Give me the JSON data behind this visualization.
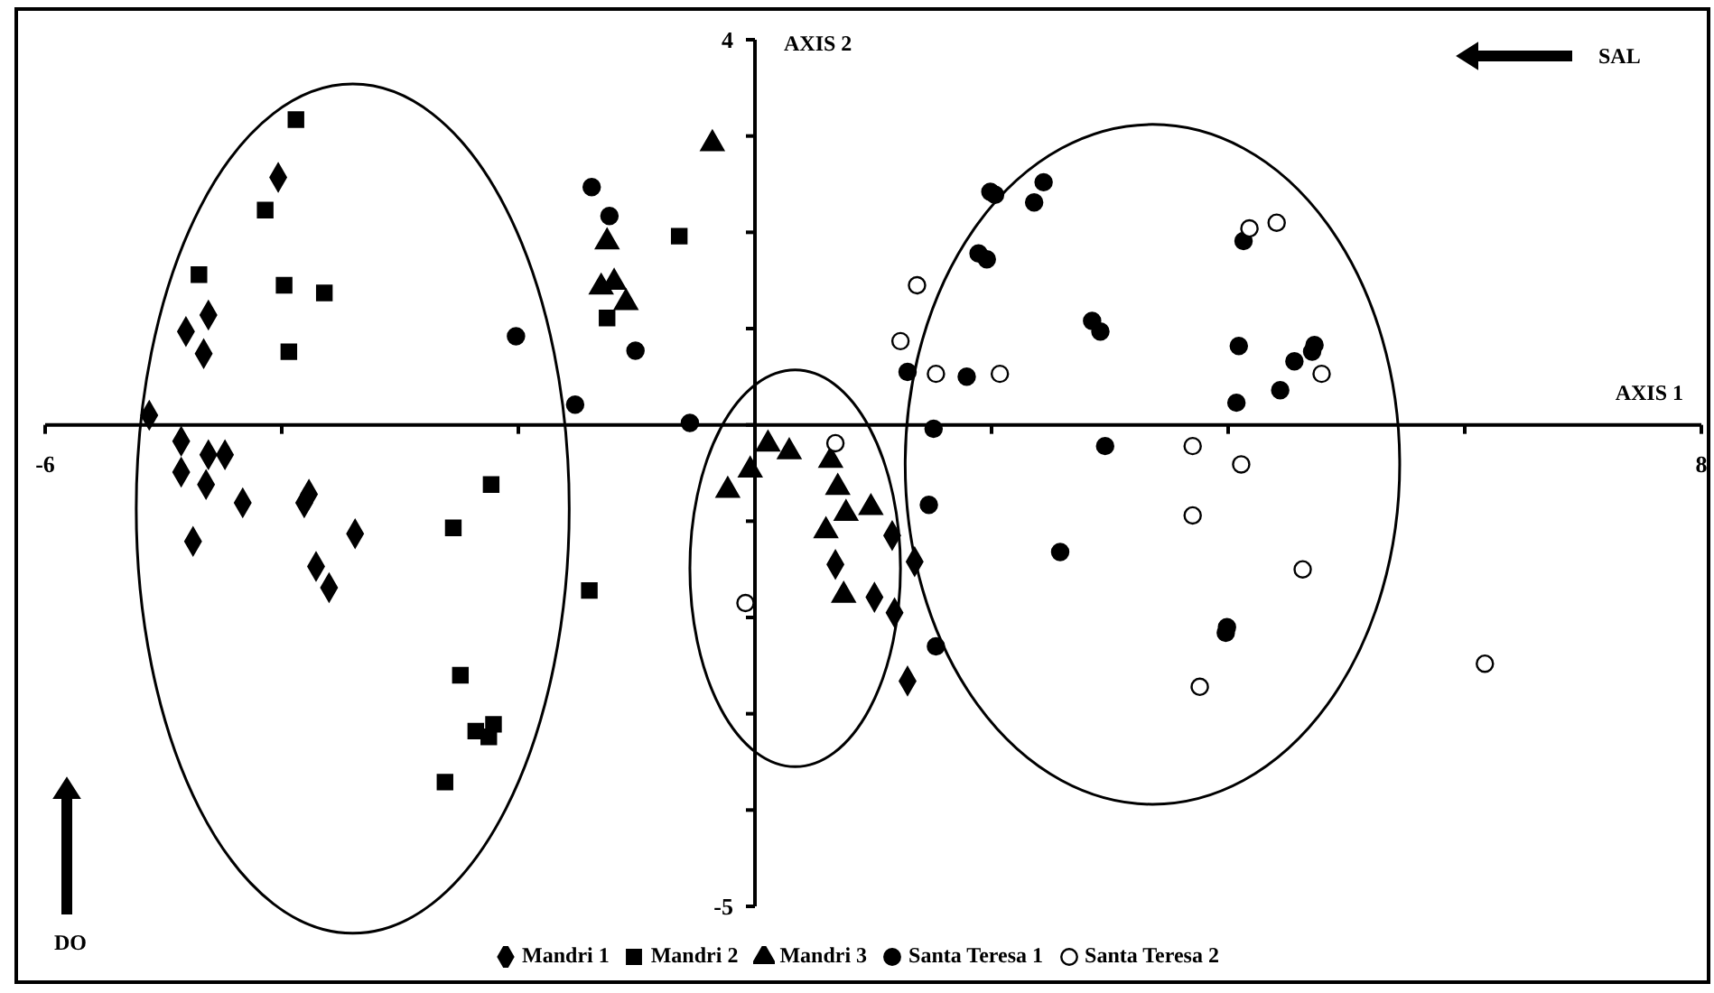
{
  "chart_data": {
    "type": "scatter",
    "xlabel": "AXIS 1",
    "ylabel": "AXIS 2",
    "annotations": [
      "SAL",
      "DO"
    ],
    "xlim": [
      -6,
      8
    ],
    "xticks": [
      -6,
      {
        "value": -4,
        "label": null
      },
      {
        "value": -2,
        "label": null
      },
      {
        "value": 0,
        "label": null
      },
      {
        "value": 2,
        "label": null
      },
      {
        "value": 4,
        "label": null
      },
      {
        "value": 6,
        "label": null
      },
      8
    ],
    "ylim": [
      -5,
      4
    ],
    "yticks": [
      -5,
      {
        "value": -4,
        "label": null
      },
      {
        "value": -3,
        "label": null
      },
      {
        "value": -2,
        "label": null
      },
      {
        "value": -1,
        "label": null
      },
      {
        "value": 0,
        "label": null
      },
      {
        "value": 1,
        "label": null
      },
      {
        "value": 2,
        "label": null
      },
      {
        "value": 3,
        "label": null
      },
      4
    ],
    "legend": "bottom",
    "series": [
      {
        "name": "Mandri 1",
        "color": "#000000",
        "marker": "diamond",
        "x": [
          -4.03,
          -4.62,
          -4.81,
          -4.66,
          -5.12,
          -4.85,
          -4.62,
          -4.48,
          -4.85,
          -4.64,
          -4.33,
          -3.77,
          -3.81,
          -3.38,
          -4.75,
          -3.71,
          -3.6,
          1.16,
          0.68,
          1.35,
          1.01,
          1.18,
          1.29
        ],
        "values": [
          2.57,
          1.14,
          0.97,
          0.74,
          0.1,
          -0.17,
          -0.31,
          -0.31,
          -0.49,
          -0.62,
          -0.81,
          -0.72,
          -0.81,
          -1.13,
          -1.21,
          -1.47,
          -1.69,
          -1.15,
          -1.45,
          -1.42,
          -1.79,
          -1.95,
          -2.66
        ]
      },
      {
        "name": "Mandri 2",
        "color": "#000000",
        "marker": "square",
        "x": [
          -3.88,
          -4.14,
          -4.7,
          -3.98,
          -3.64,
          -3.94,
          -2.23,
          -2.55,
          -2.49,
          -2.21,
          -2.36,
          -2.25,
          -2.62,
          -0.64,
          -1.25,
          -1.4
        ],
        "values": [
          3.17,
          2.23,
          1.56,
          1.45,
          1.37,
          0.76,
          -0.62,
          -1.07,
          -2.6,
          -3.11,
          -3.18,
          -3.24,
          -3.71,
          1.96,
          1.11,
          -1.72
        ]
      },
      {
        "name": "Mandri 3",
        "color": "#000000",
        "marker": "triangle",
        "x": [
          -0.36,
          -1.25,
          -1.3,
          -1.19,
          -1.09,
          0.11,
          0.29,
          -0.04,
          -0.23,
          0.64,
          0.7,
          0.77,
          0.98,
          0.6,
          0.75
        ],
        "values": [
          2.92,
          1.9,
          1.43,
          1.48,
          1.27,
          -0.2,
          -0.28,
          -0.47,
          -0.68,
          -0.37,
          -0.65,
          -0.92,
          -0.86,
          -1.1,
          -1.77
        ]
      },
      {
        "name": "Santa Teresa 1",
        "color": "#000000",
        "marker": "circle",
        "x": [
          -1.38,
          -1.23,
          -2.02,
          -1.01,
          -1.52,
          -0.55,
          1.99,
          2.03,
          2.44,
          2.36,
          1.89,
          1.96,
          2.85,
          2.92,
          4.13,
          4.09,
          4.07,
          4.56,
          4.44,
          4.73,
          4.71,
          1.29,
          1.79,
          1.51,
          2.96,
          1.47,
          2.58,
          3.99,
          3.98,
          1.53
        ],
        "values": [
          2.47,
          2.17,
          0.92,
          0.77,
          0.21,
          0.02,
          2.42,
          2.39,
          2.52,
          2.31,
          1.78,
          1.72,
          1.08,
          0.97,
          1.91,
          0.82,
          0.23,
          0.66,
          0.36,
          0.83,
          0.76,
          0.55,
          0.5,
          -0.04,
          -0.22,
          -0.83,
          -1.32,
          -2.1,
          -2.16,
          -2.3
        ]
      },
      {
        "name": "Santa Teresa 2",
        "color": "#ffffff",
        "marker": "circle",
        "x": [
          1.37,
          1.23,
          1.53,
          2.07,
          0.68,
          -0.08,
          4.18,
          4.41,
          4.79,
          3.7,
          4.11,
          3.7,
          4.63,
          3.76,
          6.17
        ],
        "values": [
          1.45,
          0.87,
          0.53,
          0.53,
          -0.19,
          -1.85,
          2.04,
          2.1,
          0.53,
          -0.22,
          -0.41,
          -0.94,
          -1.5,
          -2.72,
          -2.48
        ]
      }
    ]
  }
}
